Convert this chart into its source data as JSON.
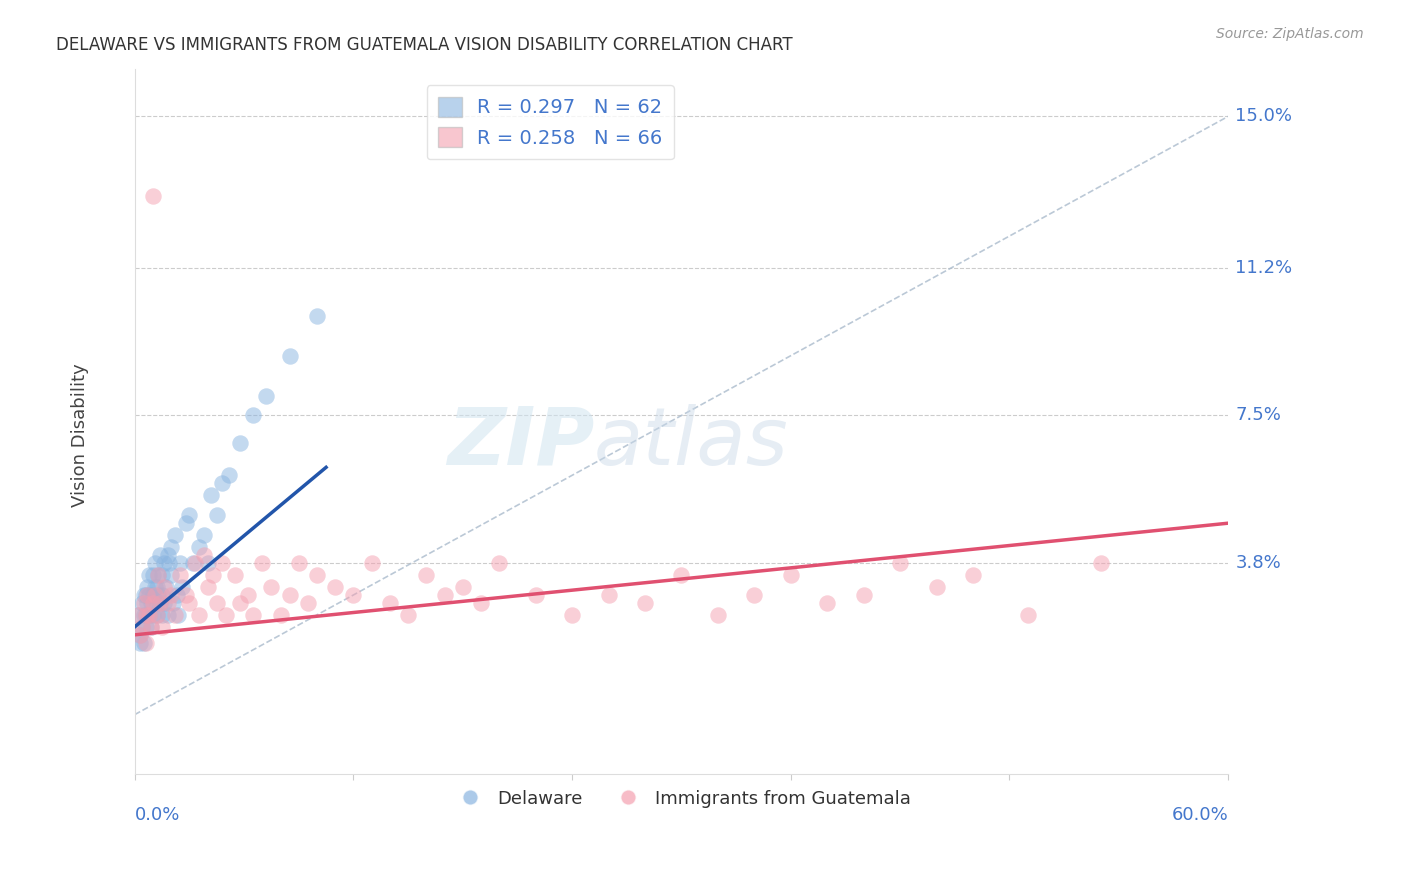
{
  "title": "DELAWARE VS IMMIGRANTS FROM GUATEMALA VISION DISABILITY CORRELATION CHART",
  "source": "Source: ZipAtlas.com",
  "ylabel": "Vision Disability",
  "ylabel_ticks": [
    0.0,
    0.038,
    0.075,
    0.112,
    0.15
  ],
  "ylabel_tick_labels": [
    "",
    "3.8%",
    "7.5%",
    "11.2%",
    "15.0%"
  ],
  "xmin": 0.0,
  "xmax": 0.6,
  "ymin": -0.015,
  "ymax": 0.162,
  "blue_R": "R = 0.297",
  "blue_N": "N = 62",
  "pink_R": "R = 0.258",
  "pink_N": "N = 66",
  "blue_color": "#89B4E0",
  "pink_color": "#F4A0B0",
  "blue_line_color": "#2255AA",
  "pink_line_color": "#E05070",
  "legend_label_blue": "Delaware",
  "legend_label_pink": "Immigrants from Guatemala",
  "watermark_zip": "ZIP",
  "watermark_atlas": "atlas",
  "blue_scatter_x": [
    0.002,
    0.003,
    0.003,
    0.004,
    0.004,
    0.005,
    0.005,
    0.005,
    0.006,
    0.006,
    0.006,
    0.007,
    0.007,
    0.008,
    0.008,
    0.008,
    0.009,
    0.009,
    0.01,
    0.01,
    0.01,
    0.011,
    0.011,
    0.012,
    0.012,
    0.012,
    0.013,
    0.013,
    0.014,
    0.014,
    0.015,
    0.015,
    0.015,
    0.016,
    0.016,
    0.017,
    0.018,
    0.018,
    0.019,
    0.02,
    0.02,
    0.021,
    0.022,
    0.023,
    0.024,
    0.025,
    0.026,
    0.028,
    0.03,
    0.032,
    0.035,
    0.038,
    0.04,
    0.042,
    0.045,
    0.048,
    0.052,
    0.058,
    0.065,
    0.072,
    0.085,
    0.1
  ],
  "blue_scatter_y": [
    0.025,
    0.02,
    0.018,
    0.022,
    0.028,
    0.03,
    0.025,
    0.018,
    0.025,
    0.03,
    0.022,
    0.028,
    0.032,
    0.025,
    0.03,
    0.035,
    0.028,
    0.022,
    0.03,
    0.035,
    0.025,
    0.032,
    0.038,
    0.028,
    0.032,
    0.025,
    0.03,
    0.035,
    0.028,
    0.04,
    0.035,
    0.03,
    0.025,
    0.028,
    0.038,
    0.032,
    0.04,
    0.025,
    0.038,
    0.035,
    0.042,
    0.028,
    0.045,
    0.03,
    0.025,
    0.038,
    0.032,
    0.048,
    0.05,
    0.038,
    0.042,
    0.045,
    0.038,
    0.055,
    0.05,
    0.058,
    0.06,
    0.068,
    0.075,
    0.08,
    0.09,
    0.1
  ],
  "pink_scatter_x": [
    0.002,
    0.003,
    0.004,
    0.005,
    0.006,
    0.006,
    0.007,
    0.008,
    0.009,
    0.01,
    0.011,
    0.012,
    0.013,
    0.014,
    0.015,
    0.016,
    0.018,
    0.02,
    0.022,
    0.025,
    0.028,
    0.03,
    0.033,
    0.035,
    0.038,
    0.04,
    0.043,
    0.045,
    0.048,
    0.05,
    0.055,
    0.058,
    0.062,
    0.065,
    0.07,
    0.075,
    0.08,
    0.085,
    0.09,
    0.095,
    0.1,
    0.11,
    0.12,
    0.13,
    0.14,
    0.15,
    0.16,
    0.17,
    0.18,
    0.19,
    0.2,
    0.22,
    0.24,
    0.26,
    0.28,
    0.3,
    0.32,
    0.34,
    0.36,
    0.38,
    0.4,
    0.42,
    0.44,
    0.46,
    0.49,
    0.53
  ],
  "pink_scatter_y": [
    0.025,
    0.02,
    0.022,
    0.028,
    0.025,
    0.018,
    0.03,
    0.025,
    0.022,
    0.028,
    0.03,
    0.025,
    0.035,
    0.028,
    0.022,
    0.032,
    0.028,
    0.03,
    0.025,
    0.035,
    0.03,
    0.028,
    0.038,
    0.025,
    0.04,
    0.032,
    0.035,
    0.028,
    0.038,
    0.025,
    0.035,
    0.028,
    0.03,
    0.025,
    0.038,
    0.032,
    0.025,
    0.03,
    0.038,
    0.028,
    0.035,
    0.032,
    0.03,
    0.038,
    0.028,
    0.025,
    0.035,
    0.03,
    0.032,
    0.028,
    0.038,
    0.03,
    0.025,
    0.03,
    0.028,
    0.035,
    0.025,
    0.03,
    0.035,
    0.028,
    0.03,
    0.038,
    0.032,
    0.035,
    0.025,
    0.038
  ],
  "pink_outlier_x": [
    0.01
  ],
  "pink_outlier_y": [
    0.13
  ],
  "blue_line_x": [
    0.0,
    0.105
  ],
  "blue_line_y": [
    0.022,
    0.062
  ],
  "pink_line_x": [
    0.0,
    0.6
  ],
  "pink_line_y": [
    0.02,
    0.048
  ],
  "diag_line_x": [
    0.0,
    0.6
  ],
  "diag_line_y": [
    0.0,
    0.15
  ]
}
